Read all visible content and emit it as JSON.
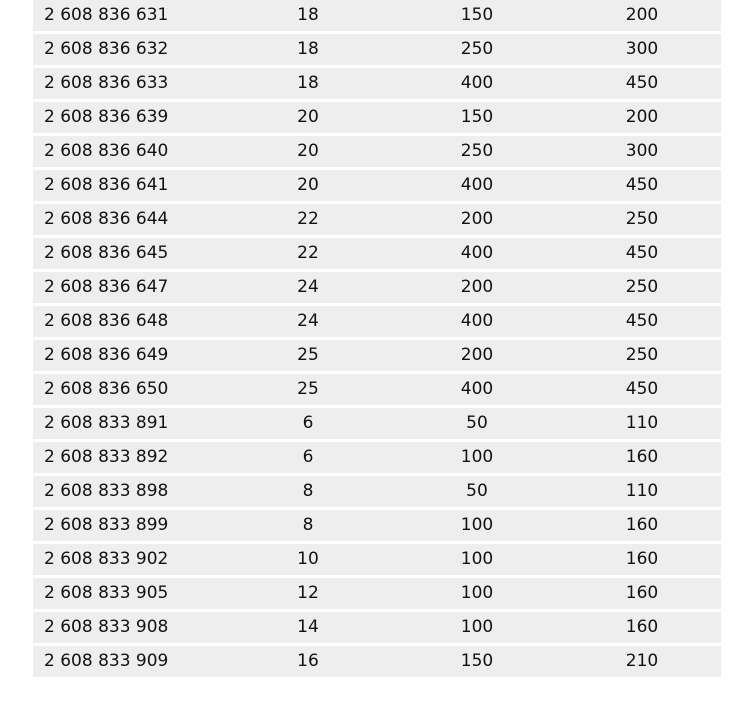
{
  "table": {
    "rows": [
      [
        "2 608 836 631",
        "18",
        "150",
        "200"
      ],
      [
        "2 608 836 632",
        "18",
        "250",
        "300"
      ],
      [
        "2 608 836 633",
        "18",
        "400",
        "450"
      ],
      [
        "2 608 836 639",
        "20",
        "150",
        "200"
      ],
      [
        "2 608 836 640",
        "20",
        "250",
        "300"
      ],
      [
        "2 608 836 641",
        "20",
        "400",
        "450"
      ],
      [
        "2 608 836 644",
        "22",
        "200",
        "250"
      ],
      [
        "2 608 836 645",
        "22",
        "400",
        "450"
      ],
      [
        "2 608 836 647",
        "24",
        "200",
        "250"
      ],
      [
        "2 608 836 648",
        "24",
        "400",
        "450"
      ],
      [
        "2 608 836 649",
        "25",
        "200",
        "250"
      ],
      [
        "2 608 836 650",
        "25",
        "400",
        "450"
      ],
      [
        "2 608 833 891",
        "6",
        "50",
        "110"
      ],
      [
        "2 608 833 892",
        "6",
        "100",
        "160"
      ],
      [
        "2 608 833 898",
        "8",
        "50",
        "110"
      ],
      [
        "2 608 833 899",
        "8",
        "100",
        "160"
      ],
      [
        "2 608 833 902",
        "10",
        "100",
        "160"
      ],
      [
        "2 608 833 905",
        "12",
        "100",
        "160"
      ],
      [
        "2 608 833 908",
        "14",
        "100",
        "160"
      ],
      [
        "2 608 833 909",
        "16",
        "150",
        "210"
      ]
    ]
  }
}
